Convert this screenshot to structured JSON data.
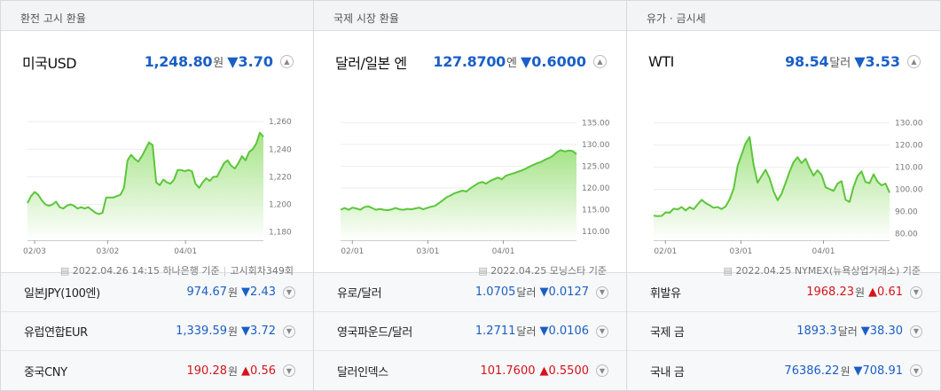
{
  "columns": [
    {
      "header": "환전 고시 환율",
      "name": "미국USD",
      "price": "1,248.80",
      "unit": "원",
      "change": "▼3.70",
      "direction": "down",
      "source": "2022.04.26 14:15 하나은행 기준",
      "source2": "고시회차349회",
      "rows": [
        {
          "name": "일본JPY(100엔)",
          "price": "974.67",
          "unit": "원",
          "change": "▼2.43",
          "direction": "down"
        },
        {
          "name": "유럽연합EUR",
          "price": "1,339.59",
          "unit": "원",
          "change": "▼3.72",
          "direction": "down"
        },
        {
          "name": "중국CNY",
          "price": "190.28",
          "unit": "원",
          "change": "▲0.56",
          "direction": "up"
        }
      ]
    },
    {
      "header": "국제 시장 환율",
      "name": "달러/일본 엔",
      "price": "127.8700",
      "unit": "엔",
      "change": "▼0.6000",
      "direction": "down",
      "source": "2022.04.25 모닝스타 기준",
      "source2": "",
      "rows": [
        {
          "name": "유로/달러",
          "price": "1.0705",
          "unit": "달러",
          "change": "▼0.0127",
          "direction": "down"
        },
        {
          "name": "영국파운드/달러",
          "price": "1.2711",
          "unit": "달러",
          "change": "▼0.0106",
          "direction": "down"
        },
        {
          "name": "달러인덱스",
          "price": "101.7600",
          "unit": "",
          "change": "▲0.5500",
          "direction": "up"
        }
      ]
    },
    {
      "header": "유가 · 금시세",
      "name": "WTI",
      "price": "98.54",
      "unit": "달러",
      "change": "▼3.53",
      "direction": "down",
      "source": "2022.04.25 NYMEX(뉴욕상업거래소) 기준",
      "source2": "",
      "rows": [
        {
          "name": "휘발유",
          "price": "1968.23",
          "unit": "원",
          "change": "▲0.61",
          "direction": "up"
        },
        {
          "name": "국제 금",
          "price": "1893.3",
          "unit": "달러",
          "change": "▼38.30",
          "direction": "down"
        },
        {
          "name": "국내 금",
          "price": "76386.22",
          "unit": "원",
          "change": "▼708.91",
          "direction": "down"
        }
      ]
    }
  ],
  "chart_data": [
    {
      "type": "area",
      "xticks": [
        "02/03",
        "03/02",
        "04/01"
      ],
      "yticks": [
        "1,260",
        "1,240",
        "1,220",
        "1,200",
        "1,180"
      ],
      "ytick_values": [
        1260,
        1240,
        1220,
        1200,
        1180
      ],
      "ylim": [
        1174,
        1264
      ],
      "xtick_pos": [
        0.03,
        0.34,
        0.67
      ],
      "values": [
        1201,
        1206,
        1209,
        1207,
        1203,
        1200,
        1199,
        1200,
        1202,
        1198,
        1197,
        1199,
        1200,
        1199,
        1197,
        1198,
        1197,
        1198,
        1196,
        1194,
        1193,
        1194,
        1205,
        1205,
        1205,
        1206,
        1207,
        1212,
        1232,
        1236,
        1233,
        1231,
        1235,
        1240,
        1245,
        1243,
        1216,
        1214,
        1218,
        1216,
        1215,
        1218,
        1225,
        1225,
        1224,
        1225,
        1224,
        1215,
        1212,
        1216,
        1219,
        1217,
        1220,
        1220,
        1225,
        1230,
        1232,
        1228,
        1226,
        1230,
        1235,
        1232,
        1238,
        1240,
        1244,
        1252,
        1249
      ],
      "grid": true
    },
    {
      "type": "area",
      "xticks": [
        "02/01",
        "03/01",
        "04/01"
      ],
      "yticks": [
        "135.00",
        "130.00",
        "125.00",
        "120.00",
        "115.00",
        "110.00"
      ],
      "ytick_values": [
        135,
        130,
        125,
        120,
        115,
        110
      ],
      "ylim": [
        108,
        136.5
      ],
      "xtick_pos": [
        0.05,
        0.37,
        0.69
      ],
      "values": [
        115.0,
        115.4,
        115.0,
        115.5,
        115.3,
        115.0,
        115.6,
        115.8,
        115.4,
        115.0,
        115.2,
        115.0,
        114.9,
        115.1,
        115.4,
        115.1,
        115.0,
        115.2,
        115.1,
        115.3,
        115.5,
        115.1,
        115.4,
        115.7,
        115.9,
        116.5,
        117.2,
        117.9,
        118.3,
        118.8,
        119.1,
        119.4,
        119.2,
        119.9,
        120.5,
        121.1,
        121.4,
        121.0,
        121.6,
        122.0,
        122.4,
        122.0,
        122.8,
        123.1,
        123.4,
        123.7,
        124.0,
        124.4,
        124.9,
        125.3,
        125.7,
        126.0,
        126.5,
        126.9,
        127.4,
        128.2,
        128.7,
        128.4,
        128.6,
        128.5,
        127.8
      ]
    },
    {
      "type": "area",
      "xticks": [
        "02/01",
        "03/01",
        "04/01"
      ],
      "yticks": [
        "130.00",
        "120.00",
        "110.00",
        "100.00",
        "90.00",
        "80.00"
      ],
      "ytick_values": [
        130,
        120,
        110,
        100,
        90,
        80
      ],
      "ylim": [
        77,
        133
      ],
      "xtick_pos": [
        0.05,
        0.37,
        0.72
      ],
      "values": [
        88.1,
        87.9,
        88.0,
        89.6,
        89.4,
        91.3,
        90.9,
        92.0,
        90.5,
        91.9,
        91.0,
        93.2,
        95.3,
        93.8,
        92.8,
        91.7,
        92.0,
        91.1,
        92.3,
        95.5,
        100.2,
        110.6,
        115.7,
        120.8,
        123.6,
        111.1,
        103.0,
        106.0,
        108.8,
        105.0,
        99.0,
        95.1,
        98.0,
        102.9,
        108.0,
        112.3,
        114.5,
        111.8,
        113.8,
        109.6,
        106.2,
        108.6,
        106.4,
        100.9,
        100.1,
        99.3,
        102.6,
        103.7,
        95.3,
        94.3,
        101.1,
        106.0,
        108.1,
        103.3,
        102.8,
        106.8,
        103.4,
        101.8,
        102.6,
        98.5
      ]
    }
  ]
}
